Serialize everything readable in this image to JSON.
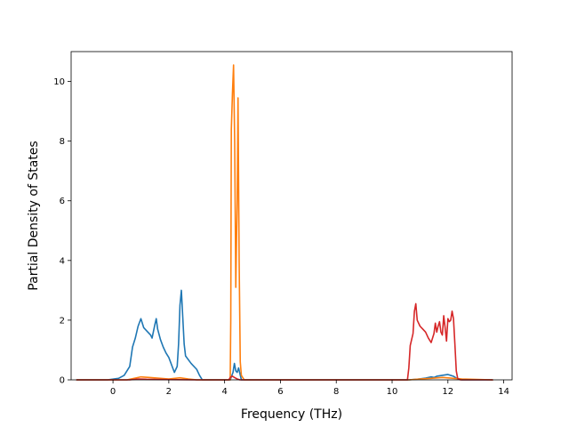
{
  "chart_data": {
    "type": "line",
    "title": "",
    "xlabel": "Frequency (THz)",
    "ylabel": "Partial Density of States",
    "xlim": [
      -1.5,
      14.3
    ],
    "ylim": [
      0,
      11
    ],
    "xticks": [
      0,
      2,
      4,
      6,
      8,
      10,
      12,
      14
    ],
    "yticks": [
      0,
      2,
      4,
      6,
      8,
      10
    ],
    "grid": false,
    "legend": "none",
    "series": [
      {
        "color": "#1f77b4",
        "points": [
          [
            -1.3,
            0
          ],
          [
            -0.2,
            0
          ],
          [
            0.2,
            0.05
          ],
          [
            0.4,
            0.15
          ],
          [
            0.6,
            0.45
          ],
          [
            0.7,
            1.1
          ],
          [
            0.8,
            1.4
          ],
          [
            0.9,
            1.8
          ],
          [
            1.0,
            2.05
          ],
          [
            1.1,
            1.75
          ],
          [
            1.2,
            1.65
          ],
          [
            1.35,
            1.5
          ],
          [
            1.4,
            1.4
          ],
          [
            1.5,
            1.85
          ],
          [
            1.55,
            2.05
          ],
          [
            1.6,
            1.7
          ],
          [
            1.7,
            1.35
          ],
          [
            1.8,
            1.1
          ],
          [
            1.9,
            0.9
          ],
          [
            2.0,
            0.75
          ],
          [
            2.1,
            0.5
          ],
          [
            2.2,
            0.25
          ],
          [
            2.3,
            0.45
          ],
          [
            2.35,
            1.2
          ],
          [
            2.4,
            2.5
          ],
          [
            2.45,
            3.0
          ],
          [
            2.5,
            2.1
          ],
          [
            2.55,
            1.2
          ],
          [
            2.6,
            0.8
          ],
          [
            2.8,
            0.55
          ],
          [
            3.0,
            0.35
          ],
          [
            3.1,
            0.15
          ],
          [
            3.2,
            0.0
          ],
          [
            4.2,
            0.0
          ],
          [
            4.3,
            0.25
          ],
          [
            4.35,
            0.55
          ],
          [
            4.4,
            0.3
          ],
          [
            4.45,
            0.25
          ],
          [
            4.5,
            0.4
          ],
          [
            4.55,
            0.2
          ],
          [
            4.6,
            0
          ],
          [
            10.6,
            0
          ],
          [
            10.9,
            0.02
          ],
          [
            11.2,
            0.06
          ],
          [
            11.4,
            0.1
          ],
          [
            11.5,
            0.08
          ],
          [
            11.6,
            0.12
          ],
          [
            11.8,
            0.15
          ],
          [
            12.0,
            0.18
          ],
          [
            12.2,
            0.12
          ],
          [
            12.35,
            0.03
          ],
          [
            12.5,
            0
          ],
          [
            13.6,
            0
          ]
        ]
      },
      {
        "color": "#ff7f0e",
        "points": [
          [
            -1.3,
            0
          ],
          [
            0.5,
            0
          ],
          [
            0.8,
            0.06
          ],
          [
            1.0,
            0.1
          ],
          [
            1.3,
            0.08
          ],
          [
            1.6,
            0.06
          ],
          [
            2.0,
            0.03
          ],
          [
            2.4,
            0.07
          ],
          [
            2.7,
            0.03
          ],
          [
            3.0,
            0
          ],
          [
            4.2,
            0
          ],
          [
            4.22,
            2.0
          ],
          [
            4.24,
            8.4
          ],
          [
            4.28,
            9.6
          ],
          [
            4.32,
            10.55
          ],
          [
            4.36,
            8.0
          ],
          [
            4.4,
            3.1
          ],
          [
            4.45,
            6.0
          ],
          [
            4.48,
            9.45
          ],
          [
            4.52,
            4.0
          ],
          [
            4.56,
            0.6
          ],
          [
            4.6,
            0.15
          ],
          [
            4.7,
            0
          ],
          [
            10.6,
            0
          ],
          [
            11.0,
            0.03
          ],
          [
            11.4,
            0.05
          ],
          [
            11.8,
            0.08
          ],
          [
            12.2,
            0.05
          ],
          [
            12.5,
            0.03
          ],
          [
            13.6,
            0
          ]
        ]
      },
      {
        "color": "#d62728",
        "points": [
          [
            -1.3,
            0
          ],
          [
            0.6,
            0
          ],
          [
            0.9,
            0.03
          ],
          [
            1.2,
            0.02
          ],
          [
            2.0,
            0.01
          ],
          [
            3.0,
            0
          ],
          [
            4.15,
            0
          ],
          [
            4.2,
            0.08
          ],
          [
            4.28,
            0.12
          ],
          [
            4.35,
            0.08
          ],
          [
            4.45,
            0.03
          ],
          [
            4.55,
            0
          ],
          [
            10.55,
            0
          ],
          [
            10.6,
            0.4
          ],
          [
            10.65,
            1.15
          ],
          [
            10.75,
            1.55
          ],
          [
            10.8,
            2.3
          ],
          [
            10.85,
            2.55
          ],
          [
            10.9,
            2.0
          ],
          [
            11.0,
            1.8
          ],
          [
            11.1,
            1.7
          ],
          [
            11.2,
            1.6
          ],
          [
            11.3,
            1.4
          ],
          [
            11.4,
            1.25
          ],
          [
            11.5,
            1.55
          ],
          [
            11.55,
            1.9
          ],
          [
            11.6,
            1.6
          ],
          [
            11.65,
            1.8
          ],
          [
            11.7,
            1.95
          ],
          [
            11.75,
            1.6
          ],
          [
            11.8,
            1.5
          ],
          [
            11.85,
            2.15
          ],
          [
            11.9,
            1.75
          ],
          [
            11.95,
            1.3
          ],
          [
            12.0,
            2.05
          ],
          [
            12.05,
            1.95
          ],
          [
            12.1,
            2.0
          ],
          [
            12.15,
            2.3
          ],
          [
            12.2,
            2.05
          ],
          [
            12.25,
            1.2
          ],
          [
            12.3,
            0.3
          ],
          [
            12.35,
            0.05
          ],
          [
            12.45,
            0
          ],
          [
            13.6,
            0
          ]
        ]
      }
    ]
  }
}
